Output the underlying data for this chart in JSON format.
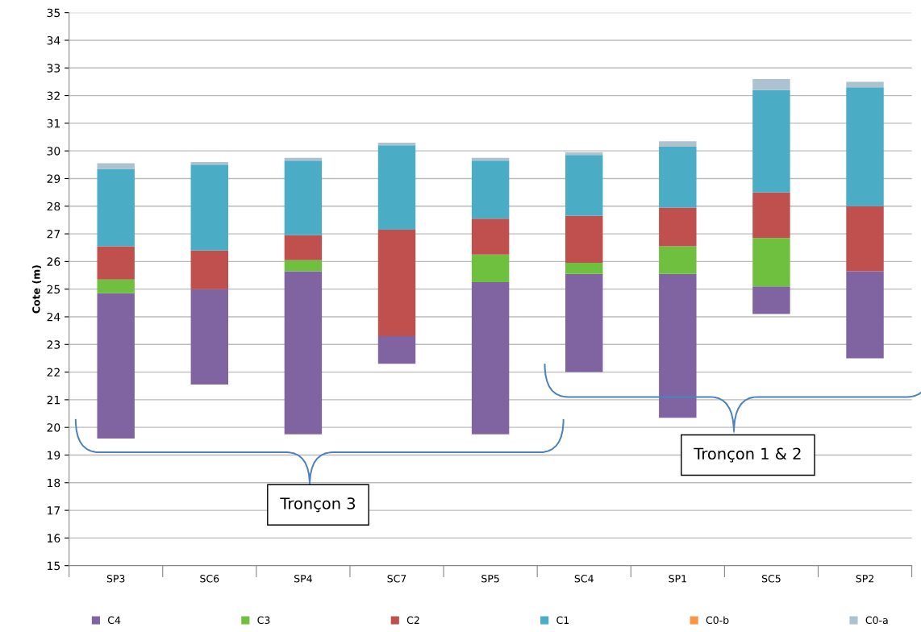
{
  "chart_data": {
    "type": "bar",
    "ylabel": "Cote (m)",
    "categories": [
      "SP3",
      "SC6",
      "SP4",
      "SC7",
      "SP5",
      "SC4",
      "SP1",
      "SC5",
      "SP2"
    ],
    "series": [
      {
        "name": "C4",
        "color": "#8064a2",
        "base": [
          19.6,
          21.55,
          19.75,
          22.3,
          19.75,
          22.0,
          20.35,
          24.1,
          22.5
        ],
        "values": [
          5.25,
          3.45,
          5.9,
          1.0,
          5.5,
          3.55,
          5.2,
          1.0,
          3.15
        ]
      },
      {
        "name": "C3",
        "color": "#6fc03f",
        "base": [
          24.85,
          null,
          25.65,
          null,
          25.25,
          25.55,
          25.55,
          25.1,
          null
        ],
        "values": [
          0.5,
          null,
          0.4,
          null,
          1.0,
          0.4,
          1.0,
          1.75,
          null
        ]
      },
      {
        "name": "C2",
        "color": "#c0504d",
        "base": [
          25.35,
          25.0,
          26.05,
          23.3,
          26.25,
          25.95,
          26.55,
          26.85,
          25.65
        ],
        "values": [
          1.2,
          1.4,
          0.9,
          3.85,
          1.3,
          1.7,
          1.4,
          1.65,
          2.35
        ]
      },
      {
        "name": "C1",
        "color": "#4bacc6",
        "base": [
          26.55,
          26.4,
          26.95,
          27.15,
          27.55,
          27.65,
          27.95,
          28.5,
          28.0
        ],
        "values": [
          2.8,
          3.1,
          2.7,
          3.05,
          2.1,
          2.2,
          2.2,
          3.7,
          4.3
        ]
      },
      {
        "name": "C0-b",
        "color": "#f79646",
        "values": [
          null,
          null,
          null,
          null,
          null,
          null,
          null,
          null,
          null
        ]
      },
      {
        "name": "C0-a",
        "color": "#acc3cf",
        "base": [
          29.35,
          29.5,
          29.65,
          30.2,
          29.65,
          29.85,
          30.15,
          32.2,
          32.3
        ],
        "values": [
          0.2,
          0.1,
          0.1,
          0.1,
          0.1,
          0.1,
          0.2,
          0.4,
          0.2
        ]
      }
    ],
    "ylim": [
      15,
      35
    ],
    "yticks": [
      15,
      16,
      17,
      18,
      19,
      20,
      21,
      22,
      23,
      24,
      25,
      26,
      27,
      28,
      29,
      30,
      31,
      32,
      33,
      34,
      35
    ],
    "grid": "y",
    "legend": "bottom",
    "annotations": [
      "Tronçon 3",
      "Tronçon 1 & 2"
    ]
  }
}
